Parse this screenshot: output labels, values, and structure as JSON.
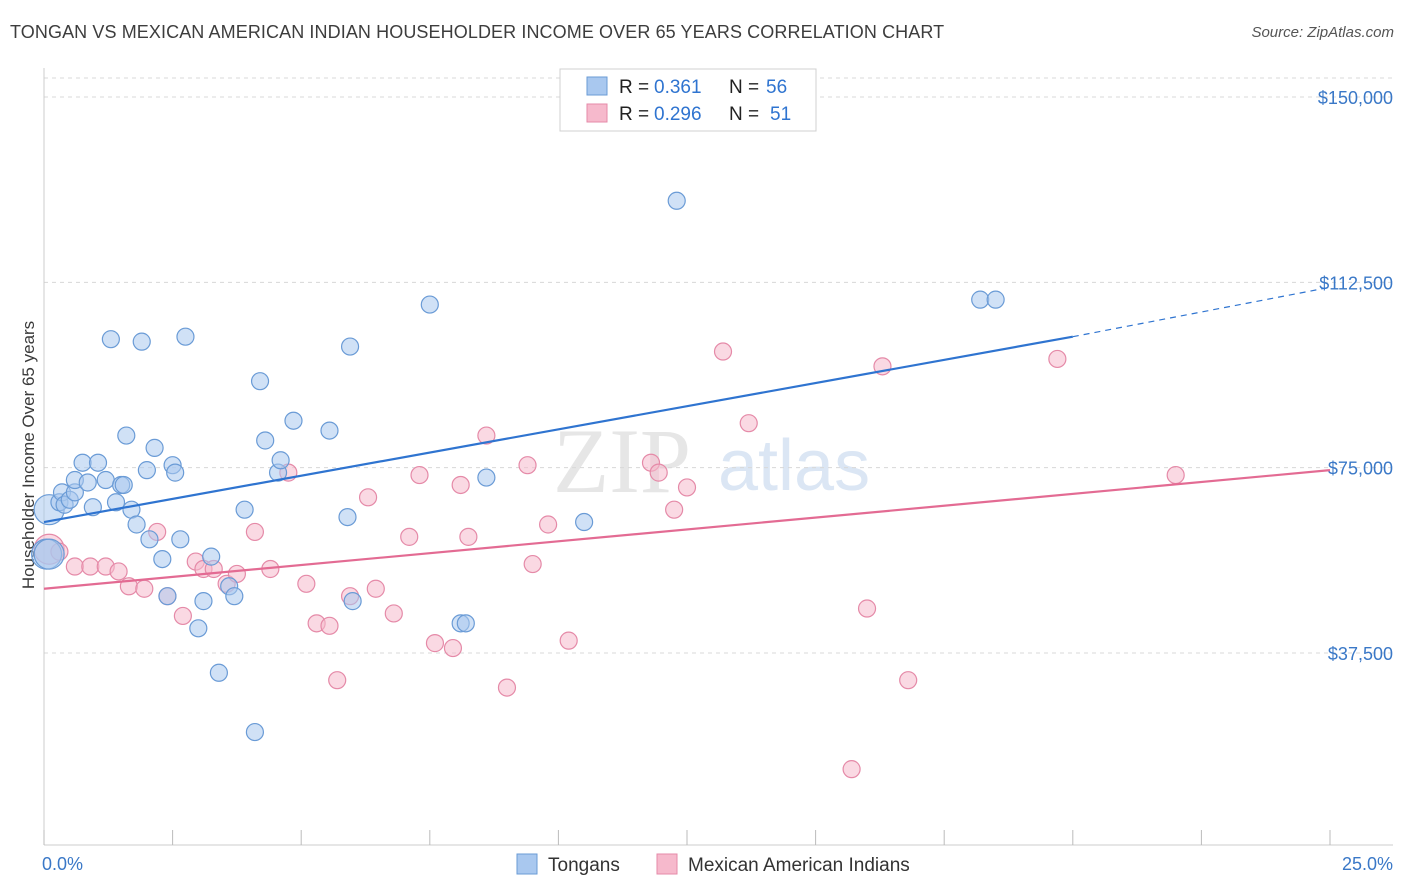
{
  "title": "TONGAN VS MEXICAN AMERICAN INDIAN HOUSEHOLDER INCOME OVER 65 YEARS CORRELATION CHART",
  "source": "Source: ZipAtlas.com",
  "watermark": {
    "zip": "ZIP",
    "atlas": "atlas"
  },
  "colors": {
    "blue_fill": "#a9c8ef",
    "blue_stroke": "#6a9bd6",
    "blue_line": "#2f74d0",
    "pink_fill": "#f6b9cc",
    "pink_stroke": "#e58aa8",
    "pink_line": "#e36b93",
    "tick_text": "#3a78c7",
    "grid": "#d8d8d8"
  },
  "legend": {
    "rows": [
      {
        "r_label": "R =",
        "r_value": "0.361",
        "n_label": "N =",
        "n_value": "56"
      },
      {
        "r_label": "R =",
        "r_value": "0.296",
        "n_label": "N =",
        "n_value": "51"
      }
    ]
  },
  "chart_data": {
    "type": "scatter",
    "title": "TONGAN VS MEXICAN AMERICAN INDIAN HOUSEHOLDER INCOME OVER 65 YEARS CORRELATION CHART",
    "xlabel": "",
    "ylabel": "Householder Income Over 65 years",
    "xlim": [
      0,
      25
    ],
    "ylim": [
      0,
      157500
    ],
    "x_tick_labels": [
      "0.0%",
      "25.0%"
    ],
    "y_ticks": [
      37500,
      75000,
      112500,
      150000
    ],
    "y_tick_labels": [
      "$37,500",
      "$75,000",
      "$112,500",
      "$150,000"
    ],
    "grid": "horizontal dashed",
    "legend_position": "top-center",
    "series": [
      {
        "name": "Tongans",
        "color": "#a9c8ef",
        "trend": {
          "x0": 0,
          "y0": 64000,
          "x1": 20,
          "y1": 101500,
          "dashed_to_x": 25,
          "dashed_to_y": 111500
        },
        "points": [
          [
            0.05,
            57500
          ],
          [
            0.1,
            66500
          ],
          [
            0.3,
            68000
          ],
          [
            0.35,
            70000
          ],
          [
            0.4,
            67500
          ],
          [
            0.5,
            68500
          ],
          [
            0.6,
            70000
          ],
          [
            0.6,
            72500
          ],
          [
            0.75,
            76000
          ],
          [
            0.85,
            72000
          ],
          [
            0.95,
            67000
          ],
          [
            1.05,
            76000
          ],
          [
            1.2,
            72500
          ],
          [
            1.4,
            68000
          ],
          [
            1.5,
            71500
          ],
          [
            1.55,
            71500
          ],
          [
            1.6,
            81500
          ],
          [
            1.7,
            66500
          ],
          [
            1.8,
            63500
          ],
          [
            1.3,
            101000
          ],
          [
            1.9,
            100500
          ],
          [
            2.0,
            74500
          ],
          [
            2.05,
            60500
          ],
          [
            2.15,
            79000
          ],
          [
            2.3,
            56500
          ],
          [
            2.4,
            49000
          ],
          [
            2.5,
            75500
          ],
          [
            2.55,
            74000
          ],
          [
            2.65,
            60500
          ],
          [
            2.75,
            101500
          ],
          [
            3.0,
            42500
          ],
          [
            3.1,
            48000
          ],
          [
            3.25,
            57000
          ],
          [
            3.4,
            33500
          ],
          [
            3.6,
            51000
          ],
          [
            3.7,
            49000
          ],
          [
            3.9,
            66500
          ],
          [
            4.1,
            21500
          ],
          [
            4.2,
            92500
          ],
          [
            4.3,
            80500
          ],
          [
            4.55,
            74000
          ],
          [
            4.6,
            76500
          ],
          [
            4.85,
            84500
          ],
          [
            5.55,
            82500
          ],
          [
            5.9,
            65000
          ],
          [
            5.95,
            99500
          ],
          [
            6.0,
            48000
          ],
          [
            7.5,
            108000
          ],
          [
            8.1,
            43500
          ],
          [
            8.2,
            43500
          ],
          [
            8.6,
            73000
          ],
          [
            10.5,
            64000
          ],
          [
            12.3,
            129000
          ],
          [
            18.2,
            109000
          ],
          [
            18.5,
            109000
          ],
          [
            0.1,
            57500
          ]
        ]
      },
      {
        "name": "Mexican American Indians",
        "color": "#f6b9cc",
        "trend": {
          "x0": 0,
          "y0": 50500,
          "x1": 25,
          "y1": 74500
        },
        "points": [
          [
            0.1,
            58500
          ],
          [
            0.3,
            58000
          ],
          [
            0.6,
            55000
          ],
          [
            0.9,
            55000
          ],
          [
            1.2,
            55000
          ],
          [
            1.45,
            54000
          ],
          [
            1.65,
            51000
          ],
          [
            1.95,
            50500
          ],
          [
            2.2,
            62000
          ],
          [
            2.4,
            49000
          ],
          [
            2.7,
            45000
          ],
          [
            2.95,
            56000
          ],
          [
            3.1,
            54500
          ],
          [
            3.3,
            54500
          ],
          [
            3.55,
            51500
          ],
          [
            3.75,
            53500
          ],
          [
            4.1,
            62000
          ],
          [
            4.4,
            54500
          ],
          [
            4.75,
            74000
          ],
          [
            5.1,
            51500
          ],
          [
            5.3,
            43500
          ],
          [
            5.55,
            43000
          ],
          [
            5.7,
            32000
          ],
          [
            5.95,
            49000
          ],
          [
            6.3,
            69000
          ],
          [
            6.45,
            50500
          ],
          [
            6.8,
            45500
          ],
          [
            7.1,
            61000
          ],
          [
            7.3,
            73500
          ],
          [
            7.6,
            39500
          ],
          [
            7.95,
            38500
          ],
          [
            8.1,
            71500
          ],
          [
            8.25,
            61000
          ],
          [
            8.6,
            81500
          ],
          [
            9.0,
            30500
          ],
          [
            9.4,
            75500
          ],
          [
            9.5,
            55500
          ],
          [
            9.8,
            63500
          ],
          [
            10.2,
            40000
          ],
          [
            11.8,
            76000
          ],
          [
            11.95,
            74000
          ],
          [
            12.25,
            66500
          ],
          [
            12.5,
            71000
          ],
          [
            13.2,
            98500
          ],
          [
            13.7,
            84000
          ],
          [
            15.7,
            14000
          ],
          [
            16.0,
            46500
          ],
          [
            16.3,
            95500
          ],
          [
            16.8,
            32000
          ],
          [
            19.7,
            97000
          ],
          [
            22.0,
            73500
          ]
        ]
      }
    ]
  },
  "bottom_legend": {
    "items": [
      "Tongans",
      "Mexican American Indians"
    ]
  }
}
